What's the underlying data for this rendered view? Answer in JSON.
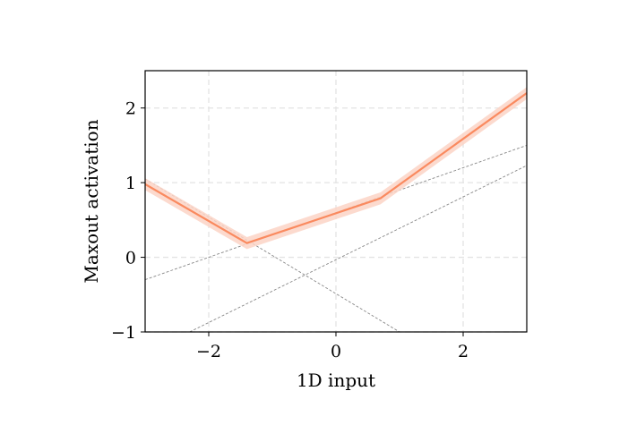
{
  "chart_data": {
    "type": "line",
    "title": "",
    "xlabel": "1D input",
    "ylabel": "Maxout activation",
    "xlim": [
      -3,
      3
    ],
    "ylim": [
      -1,
      2.5
    ],
    "xticks": [
      -2,
      0,
      2
    ],
    "yticks": [
      -1,
      0,
      1,
      2
    ],
    "xtick_labels": [
      "−2",
      "0",
      "2"
    ],
    "ytick_labels": [
      "−1",
      "0",
      "1",
      "2"
    ],
    "grid": true,
    "legend": "none",
    "band_halfwidth": 0.08,
    "maxout_curve": {
      "color": "#fa8a5f",
      "band_color": "#fcd3c5",
      "x": [
        -3,
        -1.4,
        0.7,
        3
      ],
      "y": [
        0.98,
        0.19,
        0.79,
        2.2
      ]
    },
    "component_lines": {
      "color": "#888888",
      "lines": [
        {
          "x": [
            -3,
            3
          ],
          "y": [
            -0.3,
            1.5
          ]
        },
        {
          "x": [
            -2.3,
            3
          ],
          "y": [
            -1.0,
            1.23
          ]
        },
        {
          "x": [
            -3,
            1.0
          ],
          "y": [
            1.05,
            -1.0
          ]
        }
      ]
    }
  }
}
